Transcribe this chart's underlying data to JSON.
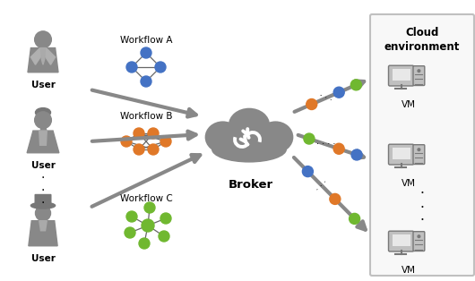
{
  "bg_color": "#ffffff",
  "cloud_color": "#888888",
  "arrow_color": "#888888",
  "user_color": "#888888",
  "workflow_a_color": "#4472c4",
  "workflow_b_color": "#e07828",
  "workflow_c_color": "#70b830",
  "title_line1": "Cloud",
  "title_line2": "environment",
  "broker_text": "Broker",
  "user_text": "User",
  "vm_text": "VM",
  "workflow_labels": [
    "Workflow A",
    "Workflow B",
    "Workflow C"
  ],
  "figsize": [
    5.3,
    3.14
  ],
  "dpi": 100
}
